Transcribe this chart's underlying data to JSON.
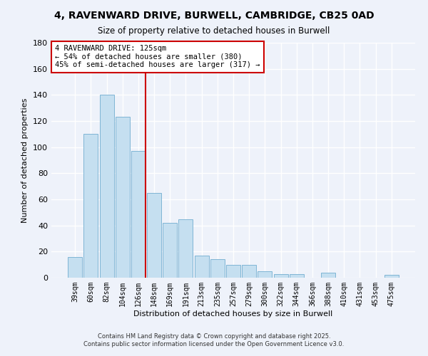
{
  "title": "4, RAVENWARD DRIVE, BURWELL, CAMBRIDGE, CB25 0AD",
  "subtitle": "Size of property relative to detached houses in Burwell",
  "xlabel": "Distribution of detached houses by size in Burwell",
  "ylabel": "Number of detached properties",
  "bar_labels": [
    "39sqm",
    "60sqm",
    "82sqm",
    "104sqm",
    "126sqm",
    "148sqm",
    "169sqm",
    "191sqm",
    "213sqm",
    "235sqm",
    "257sqm",
    "279sqm",
    "300sqm",
    "322sqm",
    "344sqm",
    "366sqm",
    "388sqm",
    "410sqm",
    "431sqm",
    "453sqm",
    "475sqm"
  ],
  "bar_values": [
    16,
    110,
    140,
    123,
    97,
    65,
    42,
    45,
    17,
    14,
    10,
    10,
    5,
    3,
    3,
    0,
    4,
    0,
    0,
    0,
    2
  ],
  "bar_color": "#c5dff0",
  "bar_edge_color": "#7fb5d5",
  "vline_color": "#cc0000",
  "ylim": [
    0,
    180
  ],
  "yticks": [
    0,
    20,
    40,
    60,
    80,
    100,
    120,
    140,
    160,
    180
  ],
  "annotation_line1": "4 RAVENWARD DRIVE: 125sqm",
  "annotation_line2": "← 54% of detached houses are smaller (380)",
  "annotation_line3": "45% of semi-detached houses are larger (317) →",
  "annotation_box_color": "#ffffff",
  "annotation_box_edge": "#cc0000",
  "footer_line1": "Contains HM Land Registry data © Crown copyright and database right 2025.",
  "footer_line2": "Contains public sector information licensed under the Open Government Licence v3.0.",
  "background_color": "#eef2fa",
  "grid_color": "#ffffff"
}
